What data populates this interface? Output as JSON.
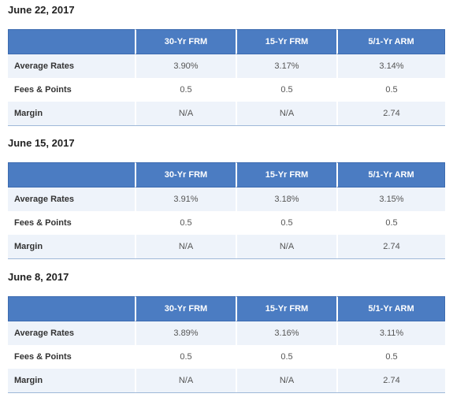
{
  "headers": [
    "30-Yr FRM",
    "15-Yr FRM",
    "5/1-Yr ARM"
  ],
  "sections": [
    {
      "date": "June 22, 2017",
      "rows": [
        {
          "label": "Average Rates",
          "values": [
            "3.90%",
            "3.17%",
            "3.14%"
          ]
        },
        {
          "label": "Fees & Points",
          "values": [
            "0.5",
            "0.5",
            "0.5"
          ]
        },
        {
          "label": "Margin",
          "values": [
            "N/A",
            "N/A",
            "2.74"
          ]
        }
      ]
    },
    {
      "date": "June 15, 2017",
      "rows": [
        {
          "label": "Average Rates",
          "values": [
            "3.91%",
            "3.18%",
            "3.15%"
          ]
        },
        {
          "label": "Fees & Points",
          "values": [
            "0.5",
            "0.5",
            "0.5"
          ]
        },
        {
          "label": "Margin",
          "values": [
            "N/A",
            "N/A",
            "2.74"
          ]
        }
      ]
    },
    {
      "date": "June 8, 2017",
      "rows": [
        {
          "label": "Average Rates",
          "values": [
            "3.89%",
            "3.16%",
            "3.11%"
          ]
        },
        {
          "label": "Fees & Points",
          "values": [
            "0.5",
            "0.5",
            "0.5"
          ]
        },
        {
          "label": "Margin",
          "values": [
            "N/A",
            "N/A",
            "2.74"
          ]
        }
      ]
    }
  ]
}
